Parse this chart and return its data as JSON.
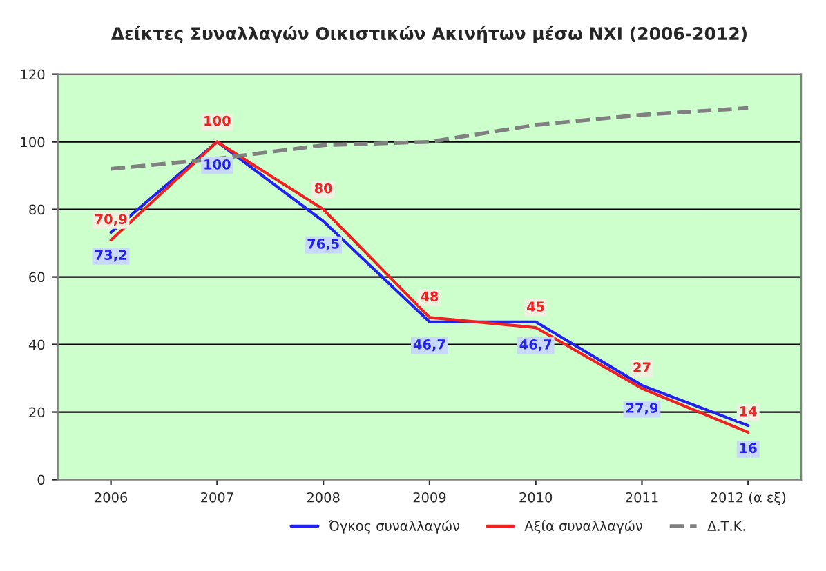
{
  "chart_data": {
    "type": "line",
    "title": "Δείκτες Συναλλαγών Οικιστικών Ακινήτων μέσω ΝΧΙ (2006-2012)",
    "categories": [
      "2006",
      "2007",
      "2008",
      "2009",
      "2010",
      "2011",
      "2012 (α εξ)"
    ],
    "series": [
      {
        "name": "Όγκος συναλλαγών",
        "color": "#2222ee",
        "values": [
          73.2,
          100,
          76.5,
          46.7,
          46.7,
          27.9,
          16
        ],
        "value_labels": [
          "73,2",
          "100",
          "76,5",
          "46,7",
          "46,7",
          "27,9",
          "16"
        ]
      },
      {
        "name": "Αξία συναλλαγών",
        "color": "#ee2222",
        "values": [
          70.9,
          100,
          80,
          48,
          45,
          27,
          14
        ],
        "value_labels": [
          "70,9",
          "100",
          "80",
          "48",
          "45",
          "27",
          "14"
        ]
      },
      {
        "name": "Δ.Τ.Κ.",
        "color": "#808080",
        "line_style": "dashed",
        "values": [
          92,
          95,
          99,
          100,
          105,
          108,
          110
        ]
      }
    ],
    "ylim": [
      0,
      120
    ],
    "yticks": [
      0,
      20,
      40,
      60,
      80,
      100,
      120
    ],
    "grid": "y",
    "legend": "bottom",
    "marker": "none"
  }
}
